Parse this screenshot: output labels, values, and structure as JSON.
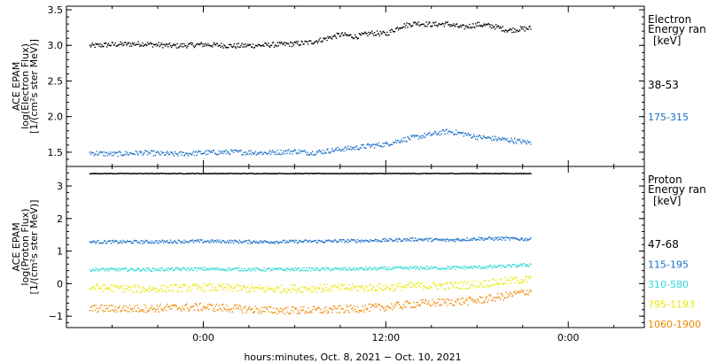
{
  "chart_data": [
    {
      "type": "scatter",
      "ylabel_lines": [
        "ACE EPAM",
        "log(Electron Flux)",
        "[1/(cm²s ster MeV)]"
      ],
      "ylim": [
        1.3,
        3.55
      ],
      "yticks": [
        {
          "value": 1.5,
          "label": "1.5"
        },
        {
          "value": 2.0,
          "label": "2.0"
        },
        {
          "value": 2.5,
          "label": "2.5"
        },
        {
          "value": 3.0,
          "label": "3.0"
        },
        {
          "value": 3.5,
          "label": "3.5"
        }
      ],
      "legend_title": [
        "Electron",
        "Energy ran",
        "[keV]"
      ],
      "series": [
        {
          "name": "38-53",
          "color": "#000000",
          "values": [
            [
              -7.5,
              3.0
            ],
            [
              -6,
              3.02
            ],
            [
              -4,
              3.03
            ],
            [
              -2,
              3.0
            ],
            [
              0,
              3.02
            ],
            [
              2,
              3.0
            ],
            [
              4,
              3.01
            ],
            [
              6,
              3.03
            ],
            [
              7,
              3.05
            ],
            [
              8,
              3.1
            ],
            [
              9,
              3.16
            ],
            [
              10,
              3.13
            ],
            [
              11,
              3.18
            ],
            [
              12,
              3.17
            ],
            [
              13,
              3.28
            ],
            [
              14,
              3.32
            ],
            [
              15,
              3.3
            ],
            [
              16,
              3.31
            ],
            [
              17,
              3.26
            ],
            [
              18,
              3.3
            ],
            [
              19,
              3.28
            ],
            [
              20,
              3.22
            ],
            [
              21.5,
              3.25
            ]
          ]
        },
        {
          "name": "175-315",
          "color": "#1a70c8",
          "values": [
            [
              -7.5,
              1.5
            ],
            [
              -6,
              1.48
            ],
            [
              -4,
              1.5
            ],
            [
              -2,
              1.48
            ],
            [
              0,
              1.5
            ],
            [
              2,
              1.51
            ],
            [
              4,
              1.5
            ],
            [
              6,
              1.52
            ],
            [
              7,
              1.5
            ],
            [
              8,
              1.52
            ],
            [
              9,
              1.55
            ],
            [
              10,
              1.57
            ],
            [
              11,
              1.6
            ],
            [
              12,
              1.62
            ],
            [
              13,
              1.68
            ],
            [
              14,
              1.72
            ],
            [
              15,
              1.76
            ],
            [
              16,
              1.8
            ],
            [
              17,
              1.77
            ],
            [
              18,
              1.72
            ],
            [
              19,
              1.7
            ],
            [
              20,
              1.68
            ],
            [
              21.5,
              1.64
            ]
          ]
        }
      ]
    },
    {
      "type": "scatter",
      "ylabel_lines": [
        "ACE EPAM",
        "log(Proton Flux)",
        "[1/(cm²s ster MeV)]"
      ],
      "ylim": [
        -1.35,
        3.6
      ],
      "yticks": [
        {
          "value": -1,
          "label": "−1"
        },
        {
          "value": 0,
          "label": "0"
        },
        {
          "value": 1,
          "label": "1"
        },
        {
          "value": 2,
          "label": "2"
        },
        {
          "value": 3,
          "label": "3"
        }
      ],
      "legend_title": [
        "Proton",
        "Energy ran",
        "[keV]"
      ],
      "series": [
        {
          "name": "47-68",
          "color": "#000000",
          "values": [
            [
              -7.5,
              3.4
            ],
            [
              -4,
              3.4
            ],
            [
              0,
              3.4
            ],
            [
              4,
              3.4
            ],
            [
              8,
              3.4
            ],
            [
              12,
              3.4
            ],
            [
              16,
              3.4
            ],
            [
              20,
              3.4
            ],
            [
              21.5,
              3.4
            ]
          ]
        },
        {
          "name": "115-195",
          "color": "#1a70c8",
          "values": [
            [
              -7.5,
              1.3
            ],
            [
              -4,
              1.3
            ],
            [
              0,
              1.32
            ],
            [
              4,
              1.3
            ],
            [
              8,
              1.32
            ],
            [
              12,
              1.35
            ],
            [
              14,
              1.38
            ],
            [
              16,
              1.35
            ],
            [
              18,
              1.4
            ],
            [
              20,
              1.4
            ],
            [
              21.5,
              1.38
            ]
          ]
        },
        {
          "name": "310-580",
          "color": "#30d8d8",
          "values": [
            [
              -7.5,
              0.45
            ],
            [
              -4,
              0.45
            ],
            [
              0,
              0.47
            ],
            [
              4,
              0.45
            ],
            [
              8,
              0.46
            ],
            [
              12,
              0.48
            ],
            [
              14,
              0.5
            ],
            [
              16,
              0.5
            ],
            [
              18,
              0.52
            ],
            [
              20,
              0.55
            ],
            [
              21.5,
              0.6
            ]
          ]
        },
        {
          "name": "795-1193",
          "color": "#e8e800",
          "values": [
            [
              -7.5,
              -0.1
            ],
            [
              -4,
              -0.15
            ],
            [
              0,
              -0.1
            ],
            [
              4,
              -0.15
            ],
            [
              8,
              -0.12
            ],
            [
              12,
              -0.1
            ],
            [
              14,
              -0.05
            ],
            [
              16,
              -0.05
            ],
            [
              18,
              0.0
            ],
            [
              20,
              0.1
            ],
            [
              21.5,
              0.15
            ]
          ]
        },
        {
          "name": "1060-1900",
          "color": "#ee8800",
          "values": [
            [
              -7.5,
              -0.75
            ],
            [
              -4,
              -0.75
            ],
            [
              0,
              -0.7
            ],
            [
              4,
              -0.8
            ],
            [
              8,
              -0.8
            ],
            [
              12,
              -0.7
            ],
            [
              14,
              -0.6
            ],
            [
              16,
              -0.55
            ],
            [
              18,
              -0.5
            ],
            [
              20,
              -0.35
            ],
            [
              21.5,
              -0.2
            ]
          ]
        }
      ]
    }
  ],
  "xaxis": {
    "xlim": [
      -9,
      29
    ],
    "ticks": [
      {
        "value": 0,
        "label": "0:00"
      },
      {
        "value": 12,
        "label": "12:00"
      },
      {
        "value": 24,
        "label": "0:00"
      }
    ],
    "label": "hours:minutes, Oct.  8, 2021 − Oct. 10, 2021"
  }
}
